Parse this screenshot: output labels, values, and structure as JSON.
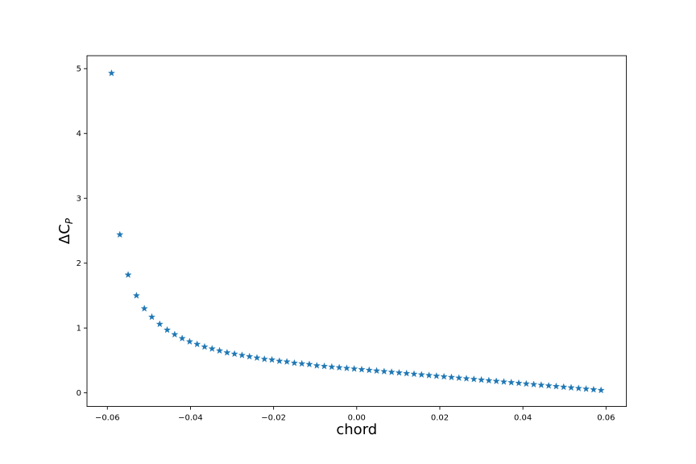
{
  "chart_data": {
    "type": "scatter",
    "title": "",
    "xlabel": "chord",
    "ylabel_main": "ΔC",
    "ylabel_sub": "P",
    "marker": "star",
    "color": "#1f77b4",
    "xlim": [
      -0.0649,
      0.0649
    ],
    "ylim": [
      -0.21,
      5.2
    ],
    "xticks": [
      -0.06,
      -0.04,
      -0.02,
      0.0,
      0.02,
      0.04,
      0.06
    ],
    "xtick_labels": [
      "−0.06",
      "−0.04",
      "−0.02",
      "0.00",
      "0.02",
      "0.04",
      "0.06"
    ],
    "yticks": [
      0,
      1,
      2,
      3,
      4,
      5
    ],
    "ytick_labels": [
      "0",
      "1",
      "2",
      "3",
      "4",
      "5"
    ],
    "grid": false,
    "legend": "none",
    "x": [
      -0.059,
      -0.057,
      -0.055,
      -0.053,
      -0.0511,
      -0.0493,
      -0.0474,
      -0.0456,
      -0.0438,
      -0.042,
      -0.0402,
      -0.0384,
      -0.0366,
      -0.0348,
      -0.033,
      -0.0312,
      -0.0294,
      -0.0276,
      -0.0258,
      -0.024,
      -0.0222,
      -0.0204,
      -0.0186,
      -0.0168,
      -0.015,
      -0.0132,
      -0.0114,
      -0.0096,
      -0.0078,
      -0.006,
      -0.0042,
      -0.0024,
      -0.0006,
      0.0012,
      0.003,
      0.0048,
      0.0066,
      0.0084,
      0.0102,
      0.012,
      0.0138,
      0.0156,
      0.0174,
      0.0192,
      0.021,
      0.0228,
      0.0246,
      0.0264,
      0.0282,
      0.03,
      0.0318,
      0.0336,
      0.0354,
      0.0372,
      0.039,
      0.0408,
      0.0426,
      0.0444,
      0.0462,
      0.048,
      0.0498,
      0.0516,
      0.0534,
      0.0552,
      0.057,
      0.0588
    ],
    "y": [
      4.93,
      2.44,
      1.82,
      1.5,
      1.3,
      1.17,
      1.06,
      0.97,
      0.9,
      0.84,
      0.79,
      0.75,
      0.71,
      0.68,
      0.65,
      0.62,
      0.6,
      0.58,
      0.56,
      0.54,
      0.52,
      0.51,
      0.49,
      0.48,
      0.46,
      0.45,
      0.44,
      0.42,
      0.41,
      0.4,
      0.39,
      0.38,
      0.37,
      0.36,
      0.35,
      0.34,
      0.33,
      0.32,
      0.31,
      0.3,
      0.29,
      0.28,
      0.27,
      0.26,
      0.25,
      0.24,
      0.23,
      0.22,
      0.21,
      0.2,
      0.19,
      0.18,
      0.17,
      0.16,
      0.15,
      0.14,
      0.13,
      0.12,
      0.11,
      0.1,
      0.09,
      0.08,
      0.07,
      0.06,
      0.05,
      0.04
    ]
  }
}
